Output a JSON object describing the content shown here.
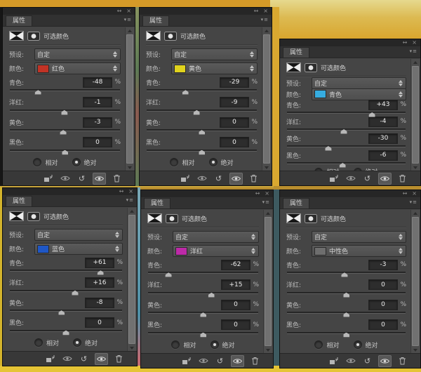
{
  "strings": {
    "panel_title": "属性",
    "adjustment_label": "可选颜色",
    "preset_label": "预设:",
    "preset_value": "自定",
    "color_label": "颜色:",
    "percent": "%",
    "relative_label": "相对",
    "absolute_label": "绝对",
    "slider_labels": [
      "青色:",
      "洋红:",
      "黄色:",
      "黑色:"
    ]
  },
  "colors": {
    "panel_bg": "#454545",
    "top_strip": "#d59a28",
    "gold_block": "#d9a62e",
    "bottom_strip": "#e5c435"
  },
  "panels": [
    {
      "color_name": "红色",
      "swatch": "#c23325",
      "values": [
        "-48",
        "-1",
        "-3",
        "0"
      ],
      "mode": "absolute"
    },
    {
      "color_name": "黄色",
      "swatch": "#e0d31d",
      "values": [
        "-29",
        "-9",
        "0",
        "0"
      ],
      "mode": "absolute"
    },
    {
      "color_name": "青色",
      "swatch": "#36ace0",
      "values": [
        "+43",
        "-4",
        "-30",
        "-6"
      ],
      "mode": "absolute"
    },
    {
      "color_name": "蓝色",
      "swatch": "#1f57c6",
      "values": [
        "+61",
        "+16",
        "-8",
        "0"
      ],
      "mode": "absolute"
    },
    {
      "color_name": "洋红",
      "swatch": "#bd2aa8",
      "values": [
        "-62",
        "+15",
        "0",
        "0"
      ],
      "mode": "absolute"
    },
    {
      "color_name": "中性色",
      "swatch": "#6e6e6e",
      "values": [
        "-3",
        "0",
        "0",
        "0"
      ],
      "mode": "absolute"
    }
  ]
}
